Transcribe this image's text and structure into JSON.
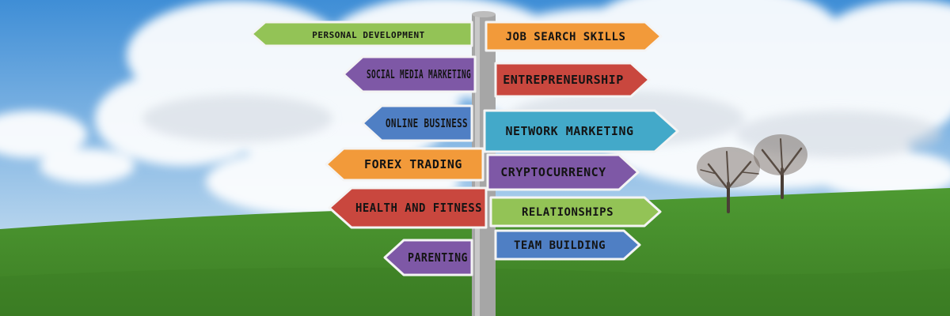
{
  "colors": {
    "sky_top": "#3f8ed6",
    "sky_bottom": "#b9d6ee",
    "grass": "#4e9a32",
    "grass_dark": "#3c7d24",
    "post": "#a6a6a6",
    "sign_border": "#f4f4f4"
  },
  "signs": [
    {
      "text": "PERSONAL DEVELOPMENT",
      "color": "#93c356",
      "direction": "left"
    },
    {
      "text": "JOB SEARCH SKILLS",
      "color": "#f29a3a",
      "direction": "right"
    },
    {
      "text": "SOCIAL MEDIA MARKETING",
      "color": "#7e58a6",
      "direction": "left"
    },
    {
      "text": "ENTREPRENEURSHIP",
      "color": "#c9473e",
      "direction": "right"
    },
    {
      "text": "ONLINE BUSINESS",
      "color": "#4f7fc4",
      "direction": "left"
    },
    {
      "text": "NETWORK MARKETING",
      "color": "#43a9c9",
      "direction": "right"
    },
    {
      "text": "FOREX TRADING",
      "color": "#f29a3a",
      "direction": "left"
    },
    {
      "text": "CRYPTOCURRENCY",
      "color": "#7e58a6",
      "direction": "right"
    },
    {
      "text": "HEALTH AND FITNESS",
      "color": "#c9473e",
      "direction": "left"
    },
    {
      "text": "RELATIONSHIPS",
      "color": "#93c356",
      "direction": "right"
    },
    {
      "text": "PARENTING",
      "color": "#7e58a6",
      "direction": "left"
    },
    {
      "text": "TEAM BUILDING",
      "color": "#4f7fc4",
      "direction": "right"
    }
  ]
}
